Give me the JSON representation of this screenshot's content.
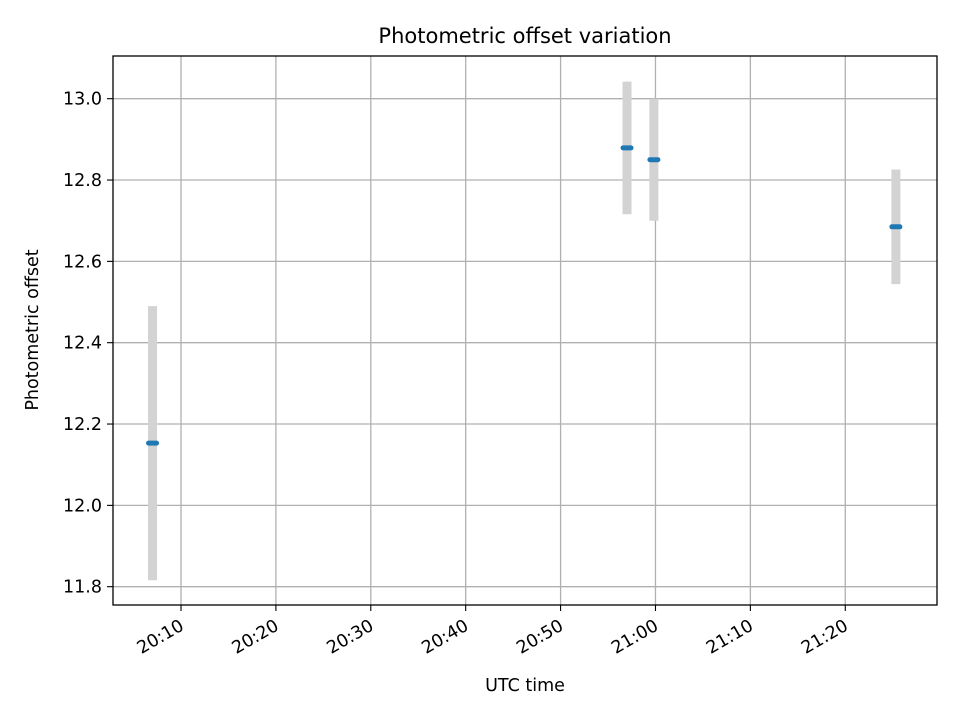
{
  "chart_data": {
    "type": "scatter",
    "title": "Photometric offset variation",
    "xlabel": "UTC time",
    "ylabel": "Photometric offset",
    "grid": true,
    "legend": "none",
    "xlim": [
      "20:02:50",
      "21:29:40"
    ],
    "ylim": [
      11.755,
      13.105
    ],
    "x_ticks": [
      "20:10",
      "20:20",
      "20:30",
      "20:40",
      "20:50",
      "21:00",
      "21:10",
      "21:20"
    ],
    "y_ticks": [
      "11.8",
      "12.0",
      "12.2",
      "12.4",
      "12.6",
      "12.8",
      "13.0"
    ],
    "series": [
      {
        "marker_color": "#1f77b4",
        "errorbar_color": "#d3d3d3",
        "points": [
          {
            "x": "20:07:00",
            "y": 12.153,
            "yerr": 0.337
          },
          {
            "x": "20:57:00",
            "y": 12.879,
            "yerr": 0.163
          },
          {
            "x": "20:59:50",
            "y": 12.85,
            "yerr": 0.15
          },
          {
            "x": "21:25:20",
            "y": 12.685,
            "yerr": 0.141
          }
        ]
      }
    ]
  }
}
